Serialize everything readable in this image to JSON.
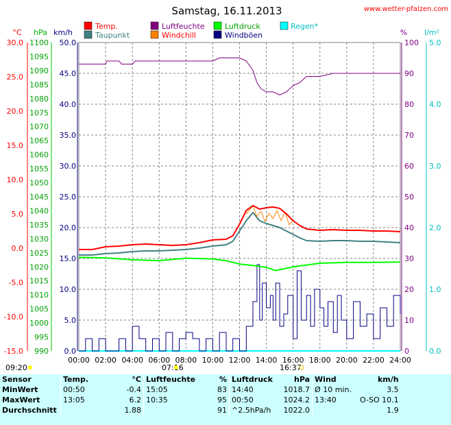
{
  "title": "Samstag, 16.11.2013",
  "credit": "www.wetter-pfalzen.com",
  "colors": {
    "temp": "#ff0000",
    "dew": "#408080",
    "humidity": "#800080",
    "windchill": "#ff8000",
    "pressure": "#00ff00",
    "gust": "#000080",
    "rain": "#00ffff",
    "stats_bg": "#ccffff"
  },
  "axis_units": {
    "celsius": "°C",
    "hpa": "hPa",
    "kmh": "km/h",
    "percent": "%",
    "rain": "l/m²"
  },
  "sun": {
    "sunrise_left": "09:20",
    "sunrise": "07:16",
    "sunset": "16:37"
  },
  "chart_data": {
    "type": "line",
    "title": "Samstag, 16.11.2013",
    "x_ticks": [
      "00:00",
      "02:00",
      "04:00",
      "06:00",
      "08:00",
      "10:00",
      "12:00",
      "14:00",
      "16:00",
      "18:00",
      "20:00",
      "22:00",
      "24:00"
    ],
    "axes": {
      "temp_c": {
        "range": [
          -15,
          30
        ],
        "ticks": [
          "30.0",
          "25.0",
          "20.0",
          "15.0",
          "10.0",
          "5.0",
          "0.0",
          "-5.0",
          "-10.0",
          "-15.0"
        ]
      },
      "pressure_hpa": {
        "range": [
          990,
          1100
        ],
        "ticks": [
          "1100",
          "1095",
          "1090",
          "1085",
          "1080",
          "1075",
          "1070",
          "1065",
          "1060",
          "1055",
          "1050",
          "1045",
          "1040",
          "1035",
          "1030",
          "1025",
          "1020",
          "1015",
          "1010",
          "1005",
          "1000",
          "995",
          "990"
        ]
      },
      "wind_kmh": {
        "range": [
          0,
          50
        ],
        "ticks": [
          "50.0",
          "45.0",
          "40.0",
          "35.0",
          "30.0",
          "25.0",
          "20.0",
          "15.0",
          "10.0",
          "5.0",
          "0.0"
        ]
      },
      "humidity_pct": {
        "range": [
          0,
          100
        ],
        "ticks": [
          "100",
          "90",
          "80",
          "70",
          "60",
          "50",
          "40",
          "30",
          "20",
          "10",
          "0"
        ]
      },
      "rain_lm2": {
        "range": [
          0,
          5
        ],
        "ticks": [
          "5.0",
          "4.0",
          "3.0",
          "2.0",
          "1.0",
          "0.0"
        ]
      }
    },
    "legend": [
      "Temp.",
      "Luftfeuchte",
      "Luftdruck",
      "Regen*",
      "Taupunkt",
      "Windchill",
      "Windböen"
    ],
    "series": [
      {
        "name": "Temp.",
        "axis": "temp_c",
        "x": [
          0,
          1,
          2,
          3,
          4,
          5,
          6,
          7,
          8,
          9,
          10,
          11,
          11.5,
          12,
          12.5,
          13,
          13.5,
          14,
          14.5,
          15,
          15.5,
          16,
          16.5,
          17,
          18,
          19,
          20,
          21,
          22,
          23,
          24
        ],
        "y": [
          -0.2,
          -0.2,
          0.2,
          0.3,
          0.5,
          0.6,
          0.5,
          0.4,
          0.5,
          0.8,
          1.2,
          1.3,
          1.8,
          3.5,
          5.5,
          6.2,
          5.7,
          5.9,
          6.0,
          5.8,
          5.0,
          4.0,
          3.3,
          2.8,
          2.6,
          2.7,
          2.6,
          2.6,
          2.5,
          2.5,
          2.4
        ]
      },
      {
        "name": "Taupunkt",
        "axis": "temp_c",
        "x": [
          0,
          1,
          2,
          3,
          4,
          5,
          6,
          7,
          8,
          9,
          10,
          11,
          11.5,
          12,
          12.5,
          13,
          13.5,
          14,
          14.5,
          15,
          15.5,
          16,
          16.5,
          17,
          18,
          19,
          20,
          21,
          22,
          23,
          24
        ],
        "y": [
          -1.0,
          -1.0,
          -0.8,
          -0.7,
          -0.5,
          -0.4,
          -0.4,
          -0.3,
          -0.2,
          0.0,
          0.3,
          0.5,
          1.0,
          2.5,
          4.0,
          5.2,
          4.0,
          3.6,
          3.3,
          3.0,
          2.5,
          2.0,
          1.5,
          1.1,
          1.0,
          1.1,
          1.1,
          1.0,
          1.0,
          0.9,
          0.8
        ]
      },
      {
        "name": "Windchill",
        "axis": "temp_c",
        "x": [
          12.5,
          13,
          13.3,
          13.6,
          13.9,
          14.2,
          14.5,
          14.8,
          15.1,
          15.4,
          15.7,
          16.0
        ],
        "y": [
          5.0,
          6.2,
          4.6,
          5.4,
          3.9,
          5.1,
          4.3,
          5.5,
          4.0,
          5.3,
          3.4,
          4.0
        ]
      },
      {
        "name": "Luftfeuchte",
        "axis": "humidity_pct",
        "x": [
          0,
          2,
          2.1,
          3,
          3.2,
          4,
          4.2,
          5,
          6,
          7,
          8,
          9,
          10,
          10.5,
          11,
          12,
          12.5,
          13,
          13.3,
          13.6,
          14,
          14.5,
          15,
          15.5,
          16,
          16.5,
          17,
          18,
          19,
          20,
          21,
          22,
          23,
          24
        ],
        "y": [
          93,
          93,
          94,
          94,
          93,
          93,
          94,
          94,
          94,
          94,
          94,
          94,
          94,
          95,
          95,
          95,
          94,
          91,
          87,
          85,
          84,
          84,
          83,
          84,
          86,
          87,
          89,
          89,
          90,
          90,
          90,
          90,
          90,
          90
        ]
      },
      {
        "name": "Luftdruck",
        "axis": "pressure_hpa",
        "x": [
          0,
          2,
          4,
          6,
          8,
          10,
          11,
          12,
          13,
          14,
          14.67,
          15,
          16,
          18,
          20,
          22,
          24
        ],
        "y": [
          1023.4,
          1023.2,
          1022.5,
          1022.2,
          1023.1,
          1022.8,
          1022.2,
          1021.0,
          1020.5,
          1019.8,
          1018.7,
          1019.0,
          1020.0,
          1021.3,
          1021.6,
          1021.6,
          1021.7
        ]
      },
      {
        "name": "Windböen",
        "axis": "wind_kmh",
        "x": [
          0,
          0.5,
          1,
          1.5,
          2,
          2.5,
          3,
          3.5,
          4,
          4.5,
          5,
          5.5,
          6,
          6.5,
          7,
          7.5,
          8,
          8.5,
          9,
          9.5,
          10,
          10.5,
          11,
          11.5,
          12,
          12.5,
          13,
          13.3,
          13.5,
          13.7,
          14,
          14.3,
          14.5,
          14.7,
          15,
          15.3,
          15.6,
          16,
          16.3,
          16.6,
          17,
          17.3,
          17.6,
          18,
          18.3,
          18.6,
          19,
          19.3,
          19.6,
          20,
          20.5,
          21,
          21.5,
          22,
          22.5,
          23,
          23.5,
          24
        ],
        "y": [
          0,
          2,
          0,
          2,
          0,
          0,
          2,
          0,
          4,
          2,
          0,
          2,
          0,
          3,
          0,
          2,
          3,
          2,
          0,
          2,
          0,
          3,
          0,
          2,
          0,
          4,
          8,
          14,
          5,
          11,
          7,
          9,
          5,
          11,
          4,
          6,
          9,
          2,
          13,
          5,
          9,
          4,
          10,
          7,
          4,
          8,
          3,
          9,
          5,
          2,
          8,
          4,
          6,
          2,
          7,
          4,
          9,
          6
        ]
      },
      {
        "name": "Regen*",
        "axis": "rain_lm2",
        "x": [
          0,
          24
        ],
        "y": [
          0,
          0
        ]
      }
    ]
  },
  "stats": {
    "headers": {
      "sensor": "Sensor",
      "temp": "Temp.",
      "temp_unit": "°C",
      "hum": "Luftfeuchte",
      "hum_unit": "%",
      "press": "Luftdruck",
      "press_unit": "hPa",
      "wind": "Wind",
      "wind_unit": "km/h"
    },
    "rows": [
      {
        "label": "MinWert",
        "t_time": "00:50",
        "t_val": "-0.4",
        "h_time": "15:05",
        "h_val": "83",
        "p_time": "14:40",
        "p_val": "1018.7",
        "w_time": "Ø 10 min.",
        "w_val": "3.5"
      },
      {
        "label": "MaxWert",
        "t_time": "13:05",
        "t_val": "6.2",
        "h_time": "10:35",
        "h_val": "95",
        "p_time": "00:50",
        "p_val": "1024.2",
        "w_time": "13:40",
        "w_val": "O-SO 10.1"
      },
      {
        "label": "Durchschnitt",
        "t_time": "",
        "t_val": "1.88",
        "h_time": "",
        "h_val": "91",
        "p_time": "^2.5hPa/h",
        "p_val": "1022.0",
        "w_time": "",
        "w_val": "1.9"
      }
    ]
  }
}
